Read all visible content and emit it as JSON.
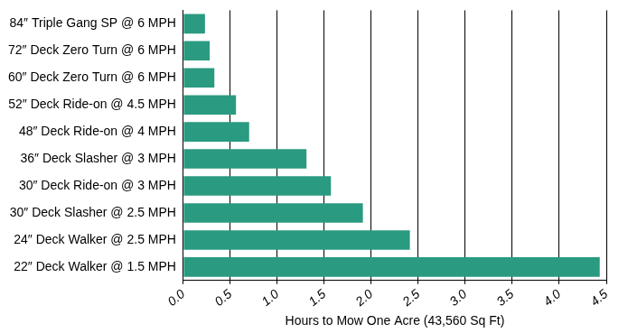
{
  "chart_data": {
    "type": "bar",
    "orientation": "horizontal",
    "x_label": "Hours to Mow One Acre (43,560 Sq Ft)",
    "categories": [
      "84″ Triple Gang SP @ 6 MPH",
      "72″ Deck Zero Turn @ 6 MPH",
      "60″ Deck Zero Turn @ 6 MPH",
      "52″ Deck Ride-on @ 4.5 MPH",
      "48″ Deck Ride-on @ 4 MPH",
      "36″ Deck Slasher @ 3 MPH",
      "30″ Deck Ride-on @ 3 MPH",
      "30″ Deck Slasher @ 2.5 MPH",
      "24″ Deck Walker @ 2.5 MPH",
      "22″ Deck Walker @ 1.5 MPH"
    ],
    "values": [
      0.23,
      0.28,
      0.33,
      0.56,
      0.7,
      1.31,
      1.57,
      1.91,
      2.41,
      4.43
    ],
    "color": "#2a9a80",
    "xlim": [
      0,
      4.5
    ],
    "xticks": [
      {
        "value": 0,
        "label": "0.0"
      },
      {
        "value": 0.5,
        "label": "0.5"
      },
      {
        "value": 1,
        "label": "1.0"
      },
      {
        "value": 1.5,
        "label": "1.5"
      },
      {
        "value": 2,
        "label": "2.0"
      },
      {
        "value": 2.5,
        "label": "2.5"
      },
      {
        "value": 3,
        "label": "3.0"
      },
      {
        "value": 3.5,
        "label": "3.5"
      },
      {
        "value": 4,
        "label": "4.0"
      },
      {
        "value": 4.5,
        "label": "4.5"
      }
    ],
    "grid": true
  }
}
